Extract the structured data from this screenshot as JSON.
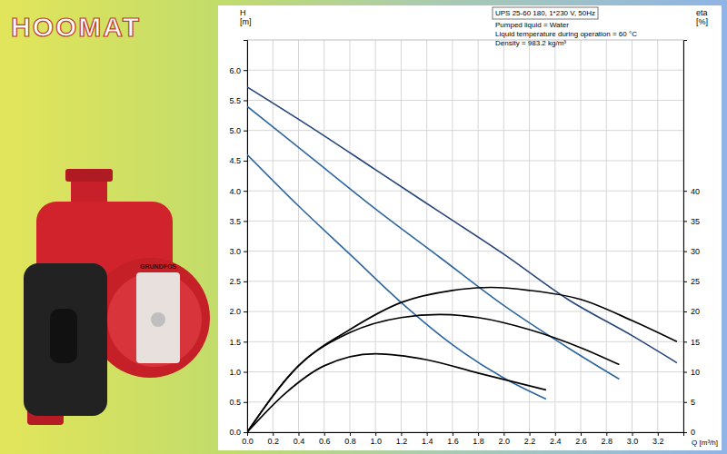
{
  "logo": "HOOMAT",
  "pump_label": "GRUNDFOS",
  "chart_data": {
    "type": "line",
    "annotations": [
      "UPS 25-60 180, 1*230 V, 50Hz",
      "Pumped liquid = Water",
      "Liquid temperature during operation = 60 °C",
      "Density = 983.2 kg/m³"
    ],
    "xlabel": "Q [m³/h]",
    "ylabel": "H [m]",
    "y2label": "eta [%]",
    "xlim": [
      0,
      3.4
    ],
    "xticks": [
      {
        "value": 0,
        "label": "0.0"
      },
      0.2,
      0.4,
      0.6,
      0.8,
      {
        "value": 1,
        "label": "1.0"
      },
      1.2,
      1.4,
      1.6,
      1.8,
      {
        "value": 2,
        "label": "2.0"
      },
      2.2,
      2.4,
      2.6,
      2.8,
      {
        "value": 3,
        "label": "3.0"
      },
      3.2
    ],
    "ylim": [
      0,
      6.5
    ],
    "yticks": [
      {
        "value": 0,
        "label": "0.0"
      },
      0.5,
      {
        "value": 1,
        "label": "1.0"
      },
      1.5,
      {
        "value": 2,
        "label": "2.0"
      },
      2.5,
      {
        "value": 3,
        "label": "3.0"
      },
      3.5,
      {
        "value": 4,
        "label": "4.0"
      },
      4.5,
      {
        "value": 5,
        "label": "5.0"
      },
      5.5,
      {
        "value": 6,
        "label": "6.0"
      }
    ],
    "y2lim": [
      0,
      65
    ],
    "y2ticks": [
      0,
      5,
      10,
      15,
      20,
      25,
      30,
      35,
      40
    ],
    "grid": true,
    "series": [
      {
        "color": "#27457a",
        "line_style": "solid",
        "x": [
          0,
          0.5,
          1,
          1.5,
          2,
          2.5,
          3,
          3.35
        ],
        "values": [
          5.72,
          5.05,
          4.35,
          3.65,
          2.95,
          2.2,
          1.6,
          1.15
        ]
      },
      {
        "color": "#2e67a0",
        "line_style": "solid",
        "x": [
          0,
          0.5,
          1,
          1.5,
          2,
          2.5,
          2.9
        ],
        "values": [
          5.4,
          4.55,
          3.7,
          2.9,
          2.1,
          1.4,
          0.88
        ]
      },
      {
        "color": "#2e67a0",
        "line_style": "solid",
        "x": [
          0,
          0.4,
          0.8,
          1.2,
          1.6,
          2,
          2.33
        ],
        "values": [
          4.6,
          3.75,
          2.95,
          2.15,
          1.45,
          0.9,
          0.55
        ]
      },
      {
        "color": "#000000",
        "line_style": "solid",
        "axis": "y2",
        "x": [
          0,
          0.4,
          0.8,
          1.2,
          1.6,
          1.9,
          2.2,
          2.6,
          3,
          3.35
        ],
        "values": [
          0,
          11,
          17,
          21.5,
          23.5,
          24,
          23.5,
          22,
          18.5,
          15
        ]
      },
      {
        "color": "#000000",
        "line_style": "solid",
        "axis": "y2",
        "x": [
          0,
          0.4,
          0.8,
          1.2,
          1.5,
          1.8,
          2.2,
          2.6,
          2.9
        ],
        "values": [
          0,
          11,
          16.5,
          19,
          19.5,
          19,
          17,
          14,
          11.2
        ]
      },
      {
        "color": "#000000",
        "line_style": "solid",
        "axis": "y2",
        "x": [
          0,
          0.3,
          0.6,
          1,
          1.4,
          1.8,
          2.33
        ],
        "values": [
          0,
          6.5,
          11,
          13,
          12,
          9.8,
          7
        ]
      }
    ]
  }
}
